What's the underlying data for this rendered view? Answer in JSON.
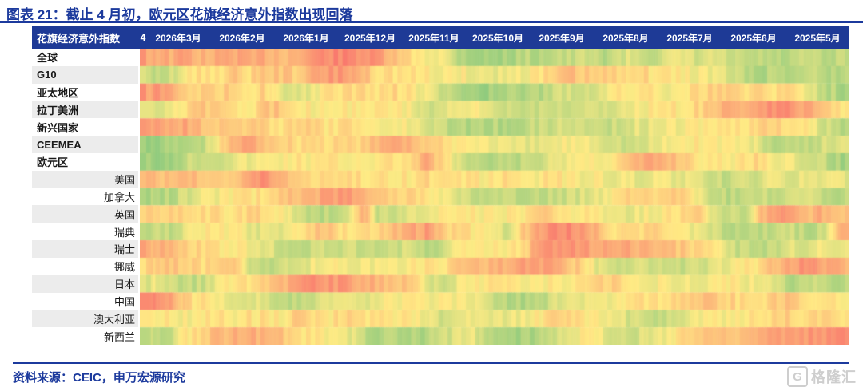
{
  "title": "图表 21：截止 4 月初，欧元区花旗经济意外指数出现回落",
  "source": "资料来源：CEIC，申万宏源研究",
  "watermark": {
    "icon_letter": "G",
    "text": "格隆汇"
  },
  "header": {
    "index_label": "花旗经济意外指数",
    "stub_label": "4",
    "months": [
      "2026年3月",
      "2026年2月",
      "2026年1月",
      "2025年12月",
      "2025年11月",
      "2025年10月",
      "2025年9月",
      "2025年8月",
      "2025年7月",
      "2025年6月",
      "2025年5月"
    ]
  },
  "colors": {
    "title_blue": "#1c3a9d",
    "header_bg": "#1e3a96",
    "row_alt_bg": "#ececec",
    "heat_negative": "#F8696B",
    "heat_neutral": "#FFEB84",
    "heat_positive": "#63BE7B"
  },
  "chart_data": {
    "type": "heatmap",
    "title": "花旗经济意外指数",
    "x_order": "newest_on_left",
    "leading_stub_column": "4",
    "columns": [
      "2026年3月",
      "2026年2月",
      "2026年1月",
      "2025年12月",
      "2025年11月",
      "2025年10月",
      "2025年9月",
      "2025年8月",
      "2025年7月",
      "2025年6月",
      "2025年5月"
    ],
    "samples_per_month": 4,
    "value_range": [
      -100,
      100
    ],
    "colormap": {
      "-100": "#F8696B",
      "0": "#FFEB84",
      "100": "#63BE7B"
    },
    "rows": [
      {
        "label": "全球",
        "group": true,
        "values": [
          -70,
          -55,
          -45,
          -55,
          -40,
          -45,
          -55,
          -40,
          -50,
          -40,
          -45,
          -65,
          -75,
          -75,
          -70,
          -60,
          -30,
          -10,
          0,
          5,
          40,
          55,
          60,
          55,
          45,
          45,
          35,
          40,
          30,
          45,
          30,
          20,
          35,
          25,
          15,
          30,
          20,
          35,
          45,
          40,
          50,
          45,
          35,
          50,
          40
        ]
      },
      {
        "label": "G10",
        "group": true,
        "values": [
          20,
          40,
          30,
          0,
          -10,
          -10,
          -25,
          -15,
          -30,
          -30,
          -25,
          -45,
          -60,
          -60,
          -40,
          -15,
          -10,
          -5,
          0,
          5,
          0,
          10,
          15,
          10,
          5,
          -5,
          -15,
          -35,
          -20,
          -20,
          -15,
          -25,
          -10,
          -5,
          0,
          5,
          10,
          25,
          45,
          50,
          40,
          45,
          35,
          40,
          50
        ]
      },
      {
        "label": "亚太地区",
        "group": true,
        "values": [
          -75,
          -70,
          -50,
          -30,
          -20,
          -15,
          -25,
          -10,
          -20,
          25,
          30,
          5,
          -5,
          -10,
          -20,
          -5,
          -15,
          -5,
          10,
          35,
          50,
          55,
          60,
          55,
          50,
          45,
          35,
          25,
          30,
          10,
          0,
          -5,
          -10,
          5,
          -5,
          -15,
          -20,
          -20,
          -15,
          -20,
          -10,
          -15,
          10,
          40,
          50
        ]
      },
      {
        "label": "拉丁美洲",
        "group": true,
        "values": [
          15,
          15,
          10,
          -15,
          -30,
          -25,
          -5,
          0,
          -25,
          -30,
          -10,
          0,
          -5,
          -5,
          0,
          0,
          -5,
          5,
          30,
          25,
          15,
          5,
          20,
          30,
          30,
          30,
          25,
          30,
          30,
          25,
          20,
          5,
          0,
          0,
          -5,
          -15,
          -35,
          -40,
          -50,
          -60,
          -70,
          -65,
          -45,
          -25,
          -10
        ]
      },
      {
        "label": "新兴国家",
        "group": true,
        "values": [
          -65,
          -60,
          -50,
          -55,
          -35,
          -30,
          -20,
          -25,
          -15,
          -10,
          -20,
          -15,
          -5,
          -10,
          -5,
          0,
          5,
          5,
          15,
          35,
          45,
          50,
          45,
          50,
          40,
          35,
          30,
          25,
          30,
          35,
          30,
          20,
          15,
          10,
          5,
          0,
          -5,
          -5,
          -10,
          -20,
          -15,
          -10,
          5,
          30,
          45
        ]
      },
      {
        "label": "CEEMEA",
        "group": true,
        "values": [
          55,
          60,
          55,
          50,
          40,
          0,
          -45,
          -55,
          -35,
          -25,
          -15,
          -20,
          -10,
          -15,
          -20,
          -35,
          -60,
          -45,
          -25,
          -10,
          -5,
          0,
          5,
          15,
          20,
          20,
          10,
          5,
          0,
          15,
          25,
          35,
          20,
          10,
          0,
          -5,
          0,
          0,
          5,
          25,
          45,
          50,
          40,
          25,
          20
        ]
      },
      {
        "label": "欧元区",
        "group": true,
        "values": [
          65,
          60,
          55,
          35,
          25,
          25,
          15,
          10,
          5,
          0,
          -5,
          0,
          -5,
          0,
          -5,
          0,
          -10,
          -10,
          -45,
          -20,
          25,
          45,
          50,
          45,
          40,
          35,
          20,
          5,
          0,
          0,
          -10,
          -35,
          -50,
          -45,
          -30,
          -10,
          0,
          0,
          -10,
          -20,
          5,
          15,
          25,
          40,
          55
        ]
      },
      {
        "label": "美国",
        "group": false,
        "values": [
          -35,
          -40,
          -35,
          -45,
          -30,
          -35,
          -25,
          -55,
          -70,
          -40,
          -25,
          -15,
          -20,
          -15,
          -10,
          -5,
          -10,
          -5,
          -15,
          -10,
          0,
          -5,
          0,
          -10,
          -5,
          0,
          -10,
          0,
          5,
          5,
          10,
          15,
          10,
          10,
          15,
          25,
          35,
          40,
          30,
          20,
          15,
          20,
          15,
          10,
          20
        ]
      },
      {
        "label": "加拿大",
        "group": false,
        "values": [
          50,
          55,
          45,
          25,
          10,
          5,
          0,
          -5,
          -15,
          -25,
          -35,
          -45,
          -55,
          -65,
          -55,
          -35,
          -15,
          -20,
          -5,
          5,
          20,
          35,
          45,
          40,
          45,
          40,
          35,
          30,
          20,
          10,
          -15,
          -25,
          -20,
          -25,
          -15,
          10,
          35,
          45,
          40,
          35,
          40,
          30,
          25,
          35,
          45
        ]
      },
      {
        "label": "英国",
        "group": false,
        "values": [
          -15,
          -15,
          -25,
          -10,
          -20,
          -10,
          -5,
          -25,
          -10,
          -5,
          30,
          45,
          40,
          35,
          -55,
          30,
          40,
          20,
          10,
          5,
          0,
          0,
          5,
          0,
          -5,
          -25,
          -15,
          -5,
          0,
          5,
          10,
          15,
          5,
          0,
          -10,
          -30,
          25,
          35,
          30,
          -40,
          -60,
          -50,
          -40,
          -45,
          -35
        ]
      },
      {
        "label": "瑞典",
        "group": false,
        "values": [
          40,
          30,
          40,
          10,
          0,
          -5,
          0,
          15,
          20,
          10,
          0,
          -25,
          -35,
          -5,
          -10,
          -20,
          -35,
          -45,
          -60,
          -30,
          -10,
          -5,
          0,
          25,
          -20,
          -55,
          -70,
          -75,
          -60,
          -30,
          -10,
          -5,
          -20,
          -5,
          0,
          10,
          30,
          45,
          50,
          45,
          25,
          35,
          45,
          30,
          -55
        ]
      },
      {
        "label": "瑞士",
        "group": false,
        "values": [
          -60,
          -50,
          -40,
          -30,
          -10,
          -5,
          0,
          10,
          20,
          30,
          40,
          35,
          30,
          30,
          35,
          30,
          35,
          25,
          40,
          35,
          10,
          0,
          -5,
          0,
          -10,
          -55,
          -65,
          -70,
          -60,
          -45,
          -55,
          -50,
          -40,
          -35,
          -30,
          -15,
          0,
          30,
          40,
          45,
          35,
          20,
          15,
          10,
          15
        ]
      },
      {
        "label": "挪威",
        "group": false,
        "values": [
          -5,
          -15,
          -30,
          -25,
          -10,
          -25,
          -35,
          25,
          40,
          35,
          20,
          10,
          0,
          5,
          10,
          0,
          10,
          0,
          -5,
          -10,
          -25,
          -35,
          -40,
          -45,
          -55,
          -60,
          -50,
          -35,
          -10,
          25,
          35,
          20,
          30,
          25,
          40,
          30,
          15,
          5,
          0,
          -10,
          -40,
          -60,
          -70,
          -50,
          -40
        ]
      },
      {
        "label": "日本",
        "group": false,
        "values": [
          15,
          15,
          25,
          40,
          35,
          10,
          0,
          -15,
          -30,
          -40,
          -55,
          -70,
          -65,
          -60,
          -50,
          -40,
          -35,
          -25,
          15,
          35,
          10,
          0,
          -5,
          0,
          5,
          0,
          -5,
          0,
          -5,
          -25,
          -15,
          -5,
          0,
          10,
          15,
          10,
          5,
          0,
          5,
          10,
          30,
          45,
          40,
          35,
          45
        ]
      },
      {
        "label": "中国",
        "group": false,
        "values": [
          -75,
          -70,
          -60,
          -20,
          -5,
          0,
          10,
          15,
          25,
          35,
          40,
          30,
          20,
          20,
          15,
          10,
          5,
          0,
          5,
          0,
          5,
          10,
          30,
          45,
          50,
          45,
          25,
          15,
          20,
          10,
          0,
          -15,
          -5,
          -10,
          -25,
          -30,
          -25,
          -20,
          -10,
          -5,
          -25,
          -30,
          -15,
          -5,
          0
        ]
      },
      {
        "label": "澳大利亚",
        "group": false,
        "values": [
          -5,
          0,
          -5,
          5,
          0,
          -5,
          0,
          -10,
          -5,
          0,
          -25,
          -10,
          -5,
          -25,
          -10,
          -5,
          0,
          0,
          5,
          25,
          10,
          5,
          10,
          15,
          5,
          0,
          -25,
          -10,
          0,
          10,
          15,
          30,
          35,
          30,
          15,
          10,
          5,
          0,
          -5,
          0,
          -25,
          -15,
          -10,
          -20,
          -15
        ]
      },
      {
        "label": "新西兰",
        "group": false,
        "values": [
          45,
          45,
          30,
          0,
          -25,
          -35,
          -45,
          -50,
          -40,
          -30,
          -10,
          0,
          5,
          10,
          35,
          50,
          45,
          55,
          50,
          30,
          20,
          15,
          45,
          60,
          55,
          50,
          25,
          5,
          0,
          10,
          25,
          35,
          15,
          5,
          -15,
          -25,
          -30,
          -35,
          -40,
          -45,
          -55,
          -50,
          -60,
          -65,
          -70
        ]
      }
    ]
  }
}
